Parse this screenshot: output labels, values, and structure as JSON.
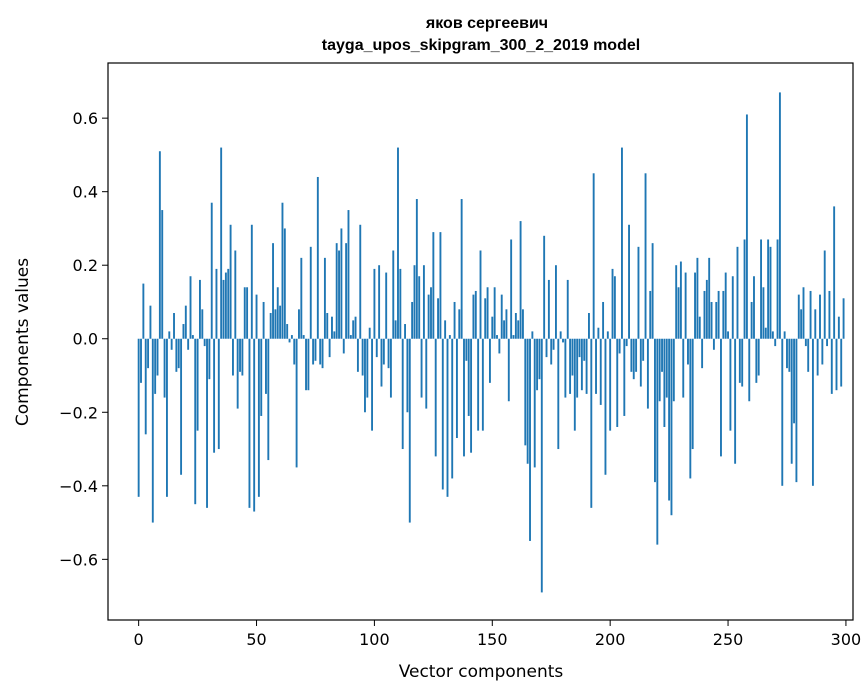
{
  "chart_data": {
    "type": "bar",
    "title": "яков сергеевич",
    "subtitle": "tayga_upos_skipgram_300_2_2019 model",
    "xlabel": "Vector components",
    "ylabel": "Components values",
    "xlim": [
      -13,
      303
    ],
    "ylim": [
      -0.765,
      0.75
    ],
    "xticks": [
      0,
      50,
      100,
      150,
      200,
      250,
      300
    ],
    "yticks": [
      -0.6,
      -0.4,
      -0.2,
      0.0,
      0.2,
      0.4,
      0.6
    ],
    "ytick_labels": [
      "−0.6",
      "−0.4",
      "−0.2",
      "0.0",
      "0.2",
      "0.4",
      "0.6"
    ],
    "bar_color": "#1f77b4",
    "values": [
      -0.43,
      -0.12,
      0.15,
      -0.26,
      -0.08,
      0.09,
      -0.5,
      -0.15,
      -0.1,
      0.51,
      0.35,
      -0.16,
      -0.43,
      0.02,
      -0.03,
      0.07,
      -0.09,
      -0.08,
      -0.37,
      0.04,
      0.09,
      -0.03,
      0.17,
      0.01,
      -0.45,
      -0.25,
      0.16,
      0.08,
      -0.02,
      -0.46,
      -0.11,
      0.37,
      -0.31,
      0.19,
      -0.3,
      0.52,
      0.16,
      0.18,
      0.19,
      0.31,
      -0.1,
      0.24,
      -0.19,
      -0.09,
      -0.1,
      0.14,
      0.14,
      -0.46,
      0.31,
      -0.47,
      0.12,
      -0.43,
      -0.21,
      0.1,
      -0.15,
      -0.33,
      0.07,
      0.26,
      0.08,
      0.14,
      0.09,
      0.37,
      0.3,
      0.04,
      -0.01,
      0.01,
      -0.07,
      -0.35,
      0.08,
      0.22,
      0.01,
      -0.14,
      -0.14,
      0.25,
      -0.07,
      -0.06,
      0.44,
      -0.07,
      -0.08,
      0.22,
      0.07,
      -0.05,
      0.06,
      0.02,
      0.26,
      0.24,
      0.3,
      -0.04,
      0.26,
      0.35,
      0.01,
      0.05,
      0.06,
      -0.09,
      0.31,
      -0.1,
      -0.2,
      -0.16,
      0.03,
      -0.25,
      0.19,
      -0.05,
      0.2,
      -0.13,
      -0.07,
      0.18,
      -0.08,
      -0.16,
      0.24,
      0.05,
      0.52,
      0.19,
      -0.3,
      0.04,
      -0.2,
      -0.5,
      0.1,
      0.2,
      0.38,
      0.17,
      -0.16,
      0.2,
      -0.19,
      0.12,
      0.14,
      0.29,
      -0.32,
      0.11,
      0.29,
      -0.41,
      0.05,
      -0.43,
      0.01,
      -0.38,
      0.1,
      -0.27,
      0.08,
      0.38,
      -0.32,
      -0.06,
      -0.21,
      -0.31,
      0.12,
      0.13,
      -0.25,
      0.24,
      -0.25,
      0.11,
      0.14,
      -0.12,
      0.06,
      0.14,
      0.01,
      -0.04,
      0.12,
      0.05,
      0.08,
      -0.17,
      0.27,
      0.01,
      0.07,
      0.05,
      0.32,
      0.08,
      -0.29,
      -0.34,
      -0.55,
      0.02,
      -0.35,
      -0.14,
      -0.11,
      -0.69,
      0.28,
      -0.05,
      0.16,
      -0.07,
      -0.03,
      0.2,
      -0.3,
      0.02,
      -0.01,
      -0.16,
      0.16,
      -0.15,
      -0.1,
      -0.25,
      -0.16,
      -0.05,
      -0.14,
      -0.06,
      -0.15,
      0.07,
      -0.46,
      0.45,
      -0.15,
      0.03,
      -0.18,
      0.1,
      -0.37,
      0.02,
      -0.25,
      0.19,
      0.17,
      -0.24,
      -0.04,
      0.52,
      -0.21,
      -0.02,
      0.31,
      -0.09,
      -0.11,
      -0.09,
      0.25,
      -0.13,
      -0.06,
      0.45,
      -0.19,
      0.13,
      0.26,
      -0.39,
      -0.56,
      -0.17,
      -0.09,
      -0.24,
      -0.16,
      -0.44,
      -0.48,
      -0.17,
      0.2,
      0.14,
      0.21,
      -0.16,
      0.18,
      -0.07,
      -0.38,
      -0.3,
      0.18,
      0.22,
      0.06,
      -0.08,
      0.13,
      0.16,
      0.22,
      0.1,
      -0.03,
      0.1,
      0.13,
      -0.32,
      0.13,
      0.18,
      0.02,
      -0.25,
      0.17,
      -0.34,
      0.25,
      -0.12,
      -0.13,
      0.27,
      0.61,
      -0.17,
      0.1,
      0.17,
      -0.12,
      -0.1,
      0.27,
      0.14,
      0.03,
      0.27,
      0.25,
      0.02,
      -0.02,
      0.27,
      0.67,
      -0.4,
      0.02,
      -0.08,
      -0.09,
      -0.34,
      -0.23,
      -0.39,
      0.12,
      0.08,
      0.14,
      -0.02,
      -0.09,
      0.13,
      -0.4,
      0.08,
      -0.1,
      0.12,
      -0.07,
      0.24,
      -0.02,
      0.13,
      -0.15,
      0.36,
      -0.14,
      0.06,
      -0.13,
      0.11
    ]
  }
}
